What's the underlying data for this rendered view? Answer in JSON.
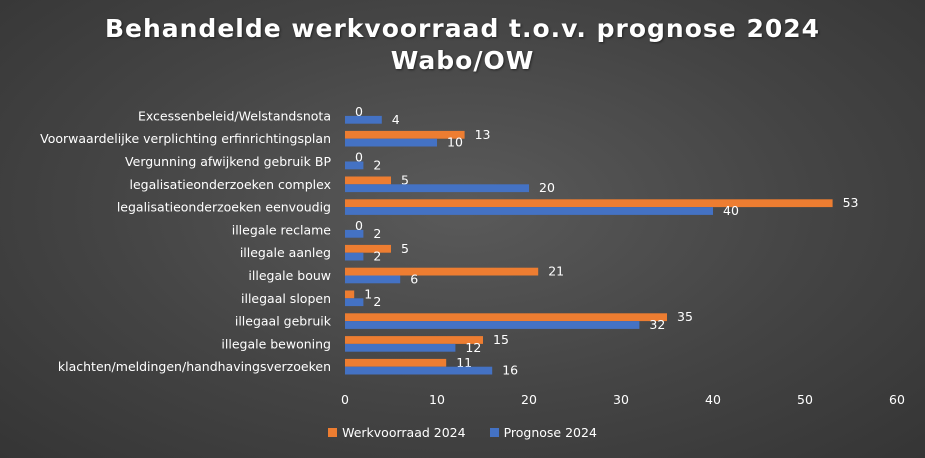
{
  "chart_data": {
    "type": "bar",
    "orientation": "horizontal",
    "title_line1": "Behandelde werkvoorraad t.o.v. prognose 2024",
    "title_line2": "Wabo/OW",
    "categories": [
      "Excessenbeleid/Welstandsnota",
      "Voorwaardelijke verplichting erfinrichtingsplan",
      "Vergunning afwijkend gebruik BP",
      "legalisatieonderzoeken complex",
      "legalisatieonderzoeken eenvoudig",
      "illegale reclame",
      "illegale aanleg",
      "illegale bouw",
      "illegaal slopen",
      "illegaal gebruik",
      "illegale bewoning",
      "klachten/meldingen/handhavingsverzoeken"
    ],
    "series": [
      {
        "name": "Werkvoorraad 2024",
        "color": "#ED7D31",
        "values": [
          0,
          13,
          0,
          5,
          53,
          0,
          5,
          21,
          1,
          35,
          15,
          11
        ]
      },
      {
        "name": "Prognose 2024",
        "color": "#4472C4",
        "values": [
          4,
          10,
          2,
          20,
          40,
          2,
          2,
          6,
          2,
          32,
          12,
          16
        ]
      }
    ],
    "xlim": [
      0,
      60
    ],
    "xticks": [
      0,
      10,
      20,
      30,
      40,
      50,
      60
    ],
    "grid": false,
    "legend_position": "bottom"
  }
}
